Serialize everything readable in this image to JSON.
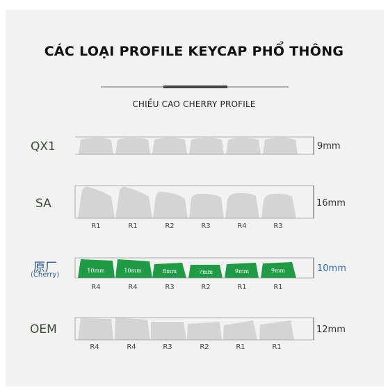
{
  "title": "CÁC LOẠI PROFILE KEYCAP PHỔ THÔNG",
  "subtitle": "CHIỀU CAO CHERRY PROFILE",
  "rows": [
    {
      "name": "QX1",
      "height": "9mm",
      "keys": []
    },
    {
      "name": "SA",
      "height": "16mm",
      "keys": [
        "R1",
        "R1",
        "R2",
        "R3",
        "R4",
        "R3"
      ]
    },
    {
      "name": "原厂",
      "name_sub": "(Cherry)",
      "height": "10mm",
      "keys": [
        "R4",
        "R4",
        "R3",
        "R2",
        "R1",
        "R1"
      ],
      "key_heights": [
        "10mm",
        "10mm",
        "8mm",
        "7mm",
        "9mm",
        "9mm"
      ]
    },
    {
      "name": "OEM",
      "height": "12mm",
      "keys": [
        "R4",
        "R4",
        "R3",
        "R2",
        "R1",
        "R1"
      ]
    }
  ],
  "colors": {
    "key_gray": "#d4d4d4",
    "key_green": "#1f9a45",
    "accent_blue": "#2c6db0"
  }
}
